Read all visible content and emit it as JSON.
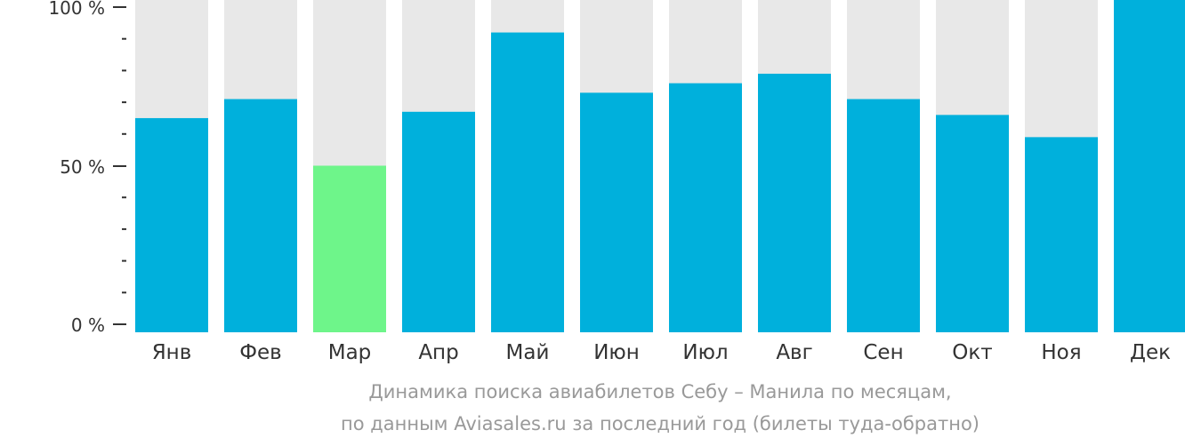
{
  "chart_data": {
    "type": "bar",
    "categories": [
      "Янв",
      "Фев",
      "Мар",
      "Апр",
      "Май",
      "Июн",
      "Июл",
      "Авг",
      "Сен",
      "Окт",
      "Ноя",
      "Дек"
    ],
    "values": [
      65,
      71,
      50,
      67,
      92,
      73,
      76,
      79,
      71,
      66,
      59,
      100
    ],
    "highlighted_category": "Мар",
    "ylim": [
      0,
      100
    ],
    "ytick_labels": [
      "0 %",
      "50 %",
      "100 %"
    ],
    "title": "",
    "xlabel": "",
    "ylabel": "",
    "grid": false,
    "legend": "none",
    "colors": {
      "bar": "#00b0dc",
      "highlight": "#6ef58a",
      "background_track": "#e8e8e8",
      "axis": "#333333",
      "caption": "#999999"
    }
  },
  "caption": {
    "line1": "Динамика поиска авиабилетов Себу – Манила по месяцам,",
    "line2": "по данным Aviasales.ru за последний год (билеты туда-обратно)"
  }
}
